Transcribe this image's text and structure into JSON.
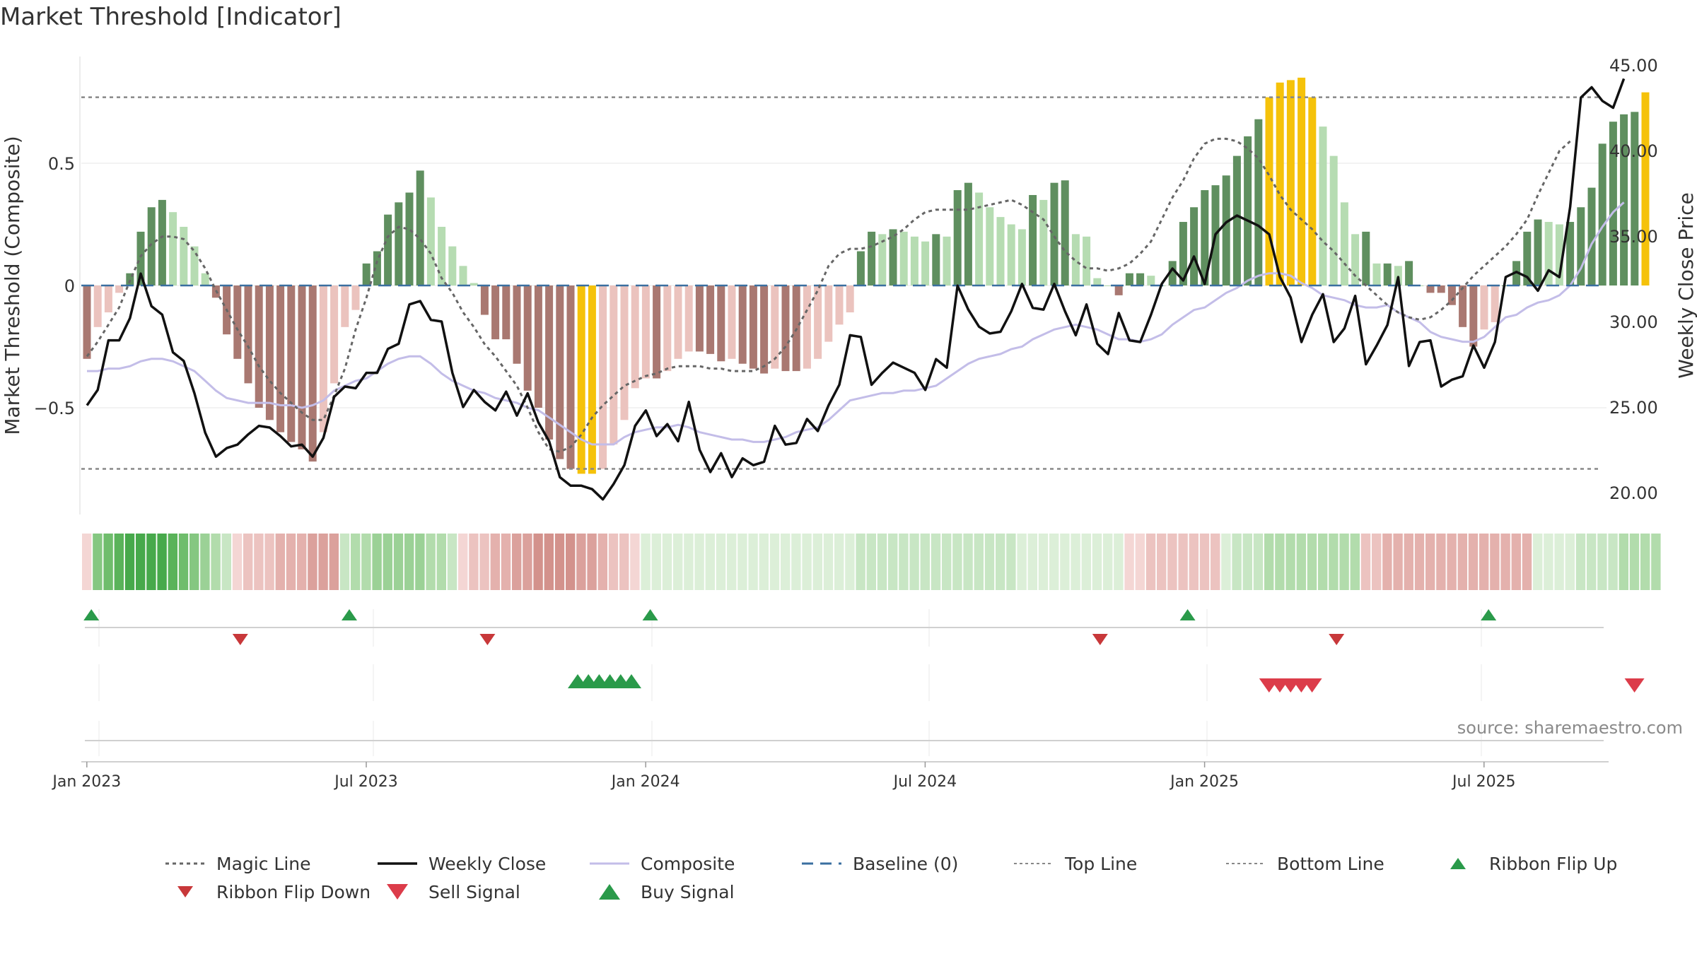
{
  "chart_data": {
    "title": "Market Threshold [Indicator]",
    "type": "bar+line",
    "ylabel_left": "Market Threshold (Composite)",
    "ylabel_right": "Weekly Close Price",
    "left_ticks": [
      {
        "v": 0.5,
        "label": "0.5"
      },
      {
        "v": 0,
        "label": "0"
      },
      {
        "v": -0.5,
        "label": "−0.5"
      }
    ],
    "right_ticks": [
      {
        "v": 45,
        "label": "45.00"
      },
      {
        "v": 40,
        "label": "40.00"
      },
      {
        "v": 35,
        "label": "35.00"
      },
      {
        "v": 30,
        "label": "30.00"
      },
      {
        "v": 25,
        "label": "25.00"
      },
      {
        "v": 20,
        "label": "20.00"
      }
    ],
    "x_ticks": [
      {
        "w": 1.5,
        "label": "Jan 2023"
      },
      {
        "w": 27.5,
        "label": "Jul 2023"
      },
      {
        "w": 53.5,
        "label": "Jan 2024"
      },
      {
        "w": 79.5,
        "label": "Jul 2024"
      },
      {
        "w": 105.5,
        "label": "Jan 2025"
      },
      {
        "w": 131.5,
        "label": "Jul 2025"
      }
    ],
    "ylim_left": [
      -0.92,
      0.92
    ],
    "ylim_right": [
      19.0,
      46.0
    ],
    "top_line": 0.77,
    "bottom_line": -0.75,
    "colors": {
      "pos_strong": "#5f8f5f",
      "pos_light": "#b6dcb2",
      "neg_strong": "#a97871",
      "neg_light": "#ebc3be",
      "extreme": "#f5c20a",
      "close": "#111111",
      "composite": "#c3bde8",
      "magic": "#666666",
      "baseline": "#3a6fa0",
      "threshold_line": "#888888",
      "flip_up": "#2a9a4a",
      "flip_down": "#c8383a",
      "buy": "#2a9a4a",
      "sell": "#dc3c4a"
    },
    "composite_hist": [
      -0.3,
      -0.17,
      -0.11,
      -0.03,
      0.05,
      0.22,
      0.32,
      0.35,
      0.3,
      0.24,
      0.16,
      0.05,
      -0.05,
      -0.2,
      -0.3,
      -0.4,
      -0.5,
      -0.55,
      -0.6,
      -0.64,
      -0.67,
      -0.72,
      -0.6,
      -0.4,
      -0.17,
      -0.1,
      0.09,
      0.14,
      0.29,
      0.34,
      0.38,
      0.47,
      0.36,
      0.24,
      0.16,
      0.08,
      0.01,
      -0.12,
      -0.22,
      -0.22,
      -0.32,
      -0.43,
      -0.5,
      -0.63,
      -0.71,
      -0.75,
      -0.77,
      -0.77,
      -0.75,
      -0.65,
      -0.55,
      -0.42,
      -0.38,
      -0.38,
      -0.35,
      -0.3,
      -0.27,
      -0.27,
      -0.28,
      -0.31,
      -0.3,
      -0.32,
      -0.34,
      -0.36,
      -0.34,
      -0.35,
      -0.35,
      -0.34,
      -0.3,
      -0.23,
      -0.16,
      -0.11,
      0.14,
      0.22,
      0.21,
      0.23,
      0.22,
      0.2,
      0.18,
      0.21,
      0.2,
      0.39,
      0.42,
      0.38,
      0.32,
      0.28,
      0.25,
      0.23,
      0.37,
      0.35,
      0.42,
      0.43,
      0.21,
      0.2,
      0.03,
      0.0,
      -0.04,
      0.05,
      0.05,
      0.04,
      0.0,
      0.1,
      0.26,
      0.32,
      0.39,
      0.41,
      0.45,
      0.53,
      0.61,
      0.68,
      0.77,
      0.83,
      0.84,
      0.85,
      0.77,
      0.65,
      0.53,
      0.34,
      0.21,
      0.22,
      0.09,
      0.09,
      0.08,
      0.1,
      0.0,
      -0.03,
      -0.03,
      -0.08,
      -0.17,
      -0.25,
      -0.18,
      -0.15,
      0.0,
      0.1,
      0.22,
      0.27,
      0.26,
      0.25,
      0.26,
      0.32,
      0.4,
      0.58,
      0.67,
      0.7,
      0.71,
      0.79
    ],
    "weekly_close": [
      25.1,
      26.0,
      28.9,
      28.9,
      30.2,
      32.8,
      30.9,
      30.4,
      28.2,
      27.7,
      25.8,
      23.5,
      22.1,
      22.6,
      22.8,
      23.4,
      23.9,
      23.8,
      23.3,
      22.7,
      22.8,
      22.1,
      23.2,
      25.6,
      26.2,
      26.1,
      27.0,
      27.0,
      28.4,
      28.7,
      31.0,
      31.2,
      30.1,
      30.0,
      27.0,
      25.0,
      26.0,
      25.3,
      24.8,
      25.9,
      24.5,
      25.8,
      24.1,
      23.0,
      20.9,
      20.4,
      20.4,
      20.2,
      19.6,
      20.5,
      21.6,
      23.9,
      24.8,
      23.3,
      24.0,
      23.0,
      25.3,
      22.5,
      21.2,
      22.3,
      20.9,
      22.0,
      21.6,
      21.8,
      23.9,
      22.8,
      22.9,
      24.3,
      23.6,
      25.1,
      26.3,
      29.2,
      29.1,
      26.3,
      27.0,
      27.6,
      27.3,
      27.0,
      26.0,
      27.8,
      27.3,
      32.1,
      30.7,
      29.7,
      29.3,
      29.4,
      30.6,
      32.2,
      30.8,
      30.7,
      32.2,
      30.6,
      29.2,
      31.0,
      28.7,
      28.1,
      30.5,
      28.9,
      28.8,
      30.4,
      32.2,
      33.1,
      32.4,
      33.8,
      32.2,
      35.1,
      35.8,
      36.2,
      35.9,
      35.6,
      35.1,
      32.6,
      31.4,
      28.8,
      30.4,
      31.6,
      28.8,
      29.6,
      31.5,
      27.5,
      28.6,
      29.8,
      32.6,
      27.4,
      28.8,
      28.9,
      26.2,
      26.6,
      26.8,
      28.6,
      27.3,
      28.8,
      32.6,
      32.9,
      32.6,
      31.8,
      33.0,
      32.6,
      36.7,
      43.1,
      43.7,
      42.9,
      42.5,
      44.2
    ],
    "composite_line": [
      -0.35,
      -0.35,
      -0.34,
      -0.34,
      -0.33,
      -0.31,
      -0.3,
      -0.3,
      -0.31,
      -0.33,
      -0.35,
      -0.39,
      -0.43,
      -0.46,
      -0.47,
      -0.48,
      -0.48,
      -0.48,
      -0.49,
      -0.49,
      -0.5,
      -0.49,
      -0.47,
      -0.43,
      -0.41,
      -0.39,
      -0.38,
      -0.35,
      -0.32,
      -0.3,
      -0.29,
      -0.29,
      -0.32,
      -0.36,
      -0.39,
      -0.41,
      -0.43,
      -0.44,
      -0.46,
      -0.47,
      -0.48,
      -0.5,
      -0.51,
      -0.54,
      -0.57,
      -0.6,
      -0.63,
      -0.65,
      -0.65,
      -0.65,
      -0.62,
      -0.6,
      -0.59,
      -0.58,
      -0.58,
      -0.57,
      -0.58,
      -0.6,
      -0.61,
      -0.62,
      -0.63,
      -0.63,
      -0.64,
      -0.64,
      -0.63,
      -0.62,
      -0.6,
      -0.59,
      -0.58,
      -0.55,
      -0.51,
      -0.47,
      -0.46,
      -0.45,
      -0.44,
      -0.44,
      -0.43,
      -0.43,
      -0.42,
      -0.41,
      -0.38,
      -0.35,
      -0.32,
      -0.3,
      -0.29,
      -0.28,
      -0.26,
      -0.25,
      -0.22,
      -0.2,
      -0.18,
      -0.17,
      -0.16,
      -0.17,
      -0.18,
      -0.2,
      -0.22,
      -0.22,
      -0.23,
      -0.22,
      -0.2,
      -0.16,
      -0.13,
      -0.1,
      -0.09,
      -0.06,
      -0.03,
      -0.01,
      0.02,
      0.04,
      0.05,
      0.05,
      0.04,
      0.01,
      -0.01,
      -0.04,
      -0.05,
      -0.06,
      -0.08,
      -0.09,
      -0.09,
      -0.08,
      -0.11,
      -0.13,
      -0.15,
      -0.19,
      -0.21,
      -0.22,
      -0.23,
      -0.23,
      -0.21,
      -0.17,
      -0.13,
      -0.12,
      -0.09,
      -0.07,
      -0.06,
      -0.04,
      0.0,
      0.07,
      0.17,
      0.24,
      0.3,
      0.34
    ],
    "magic_line": [
      -0.29,
      -0.23,
      -0.16,
      -0.09,
      0.02,
      0.12,
      0.17,
      0.2,
      0.2,
      0.19,
      0.14,
      0.07,
      -0.02,
      -0.1,
      -0.18,
      -0.25,
      -0.33,
      -0.39,
      -0.44,
      -0.48,
      -0.52,
      -0.55,
      -0.55,
      -0.45,
      -0.34,
      -0.18,
      -0.05,
      0.1,
      0.2,
      0.24,
      0.23,
      0.19,
      0.13,
      0.03,
      -0.03,
      -0.11,
      -0.17,
      -0.24,
      -0.29,
      -0.35,
      -0.41,
      -0.5,
      -0.6,
      -0.67,
      -0.68,
      -0.66,
      -0.61,
      -0.54,
      -0.49,
      -0.45,
      -0.41,
      -0.39,
      -0.37,
      -0.36,
      -0.34,
      -0.33,
      -0.33,
      -0.33,
      -0.34,
      -0.34,
      -0.35,
      -0.35,
      -0.35,
      -0.33,
      -0.3,
      -0.25,
      -0.18,
      -0.1,
      -0.02,
      0.08,
      0.13,
      0.15,
      0.15,
      0.16,
      0.18,
      0.2,
      0.23,
      0.27,
      0.3,
      0.31,
      0.31,
      0.31,
      0.31,
      0.32,
      0.33,
      0.34,
      0.35,
      0.33,
      0.3,
      0.27,
      0.2,
      0.14,
      0.1,
      0.07,
      0.07,
      0.06,
      0.07,
      0.09,
      0.13,
      0.18,
      0.27,
      0.36,
      0.43,
      0.52,
      0.58,
      0.6,
      0.6,
      0.59,
      0.56,
      0.52,
      0.45,
      0.37,
      0.31,
      0.27,
      0.23,
      0.18,
      0.14,
      0.09,
      0.04,
      0.0,
      -0.04,
      -0.08,
      -0.11,
      -0.13,
      -0.14,
      -0.13,
      -0.1,
      -0.06,
      -0.01,
      0.04,
      0.08,
      0.12,
      0.16,
      0.21,
      0.27,
      0.37,
      0.46,
      0.55,
      0.59
    ],
    "ribbon": [
      {
        "side": "n",
        "level": 1
      },
      {
        "side": "p",
        "level": 5
      },
      {
        "side": "p",
        "level": 6
      },
      {
        "side": "p",
        "level": 7
      },
      {
        "side": "p",
        "level": 8
      },
      {
        "side": "p",
        "level": 8
      },
      {
        "side": "p",
        "level": 8
      },
      {
        "side": "p",
        "level": 8
      },
      {
        "side": "p",
        "level": 7
      },
      {
        "side": "p",
        "level": 6
      },
      {
        "side": "p",
        "level": 5
      },
      {
        "side": "p",
        "level": 4
      },
      {
        "side": "p",
        "level": 3
      },
      {
        "side": "p",
        "level": 2
      },
      {
        "side": "n",
        "level": 1
      },
      {
        "side": "n",
        "level": 2
      },
      {
        "side": "n",
        "level": 2
      },
      {
        "side": "n",
        "level": 2
      },
      {
        "side": "n",
        "level": 3
      },
      {
        "side": "n",
        "level": 3
      },
      {
        "side": "n",
        "level": 3
      },
      {
        "side": "n",
        "level": 4
      },
      {
        "side": "n",
        "level": 4
      },
      {
        "side": "n",
        "level": 4
      },
      {
        "side": "p",
        "level": 2
      },
      {
        "side": "p",
        "level": 3
      },
      {
        "side": "p",
        "level": 3
      },
      {
        "side": "p",
        "level": 4
      },
      {
        "side": "p",
        "level": 4
      },
      {
        "side": "p",
        "level": 4
      },
      {
        "side": "p",
        "level": 4
      },
      {
        "side": "p",
        "level": 4
      },
      {
        "side": "p",
        "level": 3
      },
      {
        "side": "p",
        "level": 3
      },
      {
        "side": "p",
        "level": 2
      },
      {
        "side": "n",
        "level": 1
      },
      {
        "side": "n",
        "level": 2
      },
      {
        "side": "n",
        "level": 2
      },
      {
        "side": "n",
        "level": 3
      },
      {
        "side": "n",
        "level": 3
      },
      {
        "side": "n",
        "level": 4
      },
      {
        "side": "n",
        "level": 4
      },
      {
        "side": "n",
        "level": 5
      },
      {
        "side": "n",
        "level": 5
      },
      {
        "side": "n",
        "level": 5
      },
      {
        "side": "n",
        "level": 5
      },
      {
        "side": "n",
        "level": 4
      },
      {
        "side": "n",
        "level": 4
      },
      {
        "side": "n",
        "level": 3
      },
      {
        "side": "n",
        "level": 2
      },
      {
        "side": "n",
        "level": 2
      },
      {
        "side": "n",
        "level": 1
      },
      {
        "side": "p",
        "level": 1
      },
      {
        "side": "p",
        "level": 1
      },
      {
        "side": "p",
        "level": 1
      },
      {
        "side": "p",
        "level": 1
      },
      {
        "side": "p",
        "level": 1
      },
      {
        "side": "p",
        "level": 1
      },
      {
        "side": "p",
        "level": 1
      },
      {
        "side": "p",
        "level": 1
      },
      {
        "side": "p",
        "level": 1
      },
      {
        "side": "p",
        "level": 1
      },
      {
        "side": "p",
        "level": 1
      },
      {
        "side": "p",
        "level": 1
      },
      {
        "side": "p",
        "level": 1
      },
      {
        "side": "p",
        "level": 1
      },
      {
        "side": "p",
        "level": 1
      },
      {
        "side": "p",
        "level": 1
      },
      {
        "side": "p",
        "level": 1
      },
      {
        "side": "p",
        "level": 1
      },
      {
        "side": "p",
        "level": 1
      },
      {
        "side": "p",
        "level": 1
      },
      {
        "side": "p",
        "level": 2
      },
      {
        "side": "p",
        "level": 2
      },
      {
        "side": "p",
        "level": 2
      },
      {
        "side": "p",
        "level": 2
      },
      {
        "side": "p",
        "level": 2
      },
      {
        "side": "p",
        "level": 2
      },
      {
        "side": "p",
        "level": 2
      },
      {
        "side": "p",
        "level": 2
      },
      {
        "side": "p",
        "level": 2
      },
      {
        "side": "p",
        "level": 2
      },
      {
        "side": "p",
        "level": 2
      },
      {
        "side": "p",
        "level": 2
      },
      {
        "side": "p",
        "level": 2
      },
      {
        "side": "p",
        "level": 2
      },
      {
        "side": "p",
        "level": 2
      },
      {
        "side": "p",
        "level": 1
      },
      {
        "side": "p",
        "level": 1
      },
      {
        "side": "p",
        "level": 1
      },
      {
        "side": "p",
        "level": 1
      },
      {
        "side": "p",
        "level": 1
      },
      {
        "side": "p",
        "level": 1
      },
      {
        "side": "p",
        "level": 1
      },
      {
        "side": "p",
        "level": 1
      },
      {
        "side": "p",
        "level": 1
      },
      {
        "side": "p",
        "level": 1
      },
      {
        "side": "n",
        "level": 1
      },
      {
        "side": "n",
        "level": 1
      },
      {
        "side": "n",
        "level": 2
      },
      {
        "side": "n",
        "level": 2
      },
      {
        "side": "n",
        "level": 2
      },
      {
        "side": "n",
        "level": 2
      },
      {
        "side": "n",
        "level": 2
      },
      {
        "side": "n",
        "level": 2
      },
      {
        "side": "n",
        "level": 2
      },
      {
        "side": "p",
        "level": 1
      },
      {
        "side": "p",
        "level": 2
      },
      {
        "side": "p",
        "level": 2
      },
      {
        "side": "p",
        "level": 2
      },
      {
        "side": "p",
        "level": 3
      },
      {
        "side": "p",
        "level": 3
      },
      {
        "side": "p",
        "level": 3
      },
      {
        "side": "p",
        "level": 3
      },
      {
        "side": "p",
        "level": 3
      },
      {
        "side": "p",
        "level": 3
      },
      {
        "side": "p",
        "level": 3
      },
      {
        "side": "p",
        "level": 3
      },
      {
        "side": "p",
        "level": 3
      },
      {
        "side": "n",
        "level": 2
      },
      {
        "side": "n",
        "level": 2
      },
      {
        "side": "n",
        "level": 3
      },
      {
        "side": "n",
        "level": 3
      },
      {
        "side": "n",
        "level": 3
      },
      {
        "side": "n",
        "level": 3
      },
      {
        "side": "n",
        "level": 3
      },
      {
        "side": "n",
        "level": 3
      },
      {
        "side": "n",
        "level": 3
      },
      {
        "side": "n",
        "level": 3
      },
      {
        "side": "n",
        "level": 3
      },
      {
        "side": "n",
        "level": 3
      },
      {
        "side": "n",
        "level": 3
      },
      {
        "side": "n",
        "level": 3
      },
      {
        "side": "n",
        "level": 3
      },
      {
        "side": "n",
        "level": 3
      },
      {
        "side": "p",
        "level": 1
      },
      {
        "side": "p",
        "level": 1
      },
      {
        "side": "p",
        "level": 1
      },
      {
        "side": "p",
        "level": 1
      },
      {
        "side": "p",
        "level": 2
      },
      {
        "side": "p",
        "level": 2
      },
      {
        "side": "p",
        "level": 2
      },
      {
        "side": "p",
        "level": 2
      },
      {
        "side": "p",
        "level": 3
      },
      {
        "side": "p",
        "level": 3
      },
      {
        "side": "p",
        "level": 3
      },
      {
        "side": "p",
        "level": 3
      }
    ],
    "signals": {
      "ribbon_flip_up": [
        1,
        25,
        53,
        103,
        131
      ],
      "ribbon_flip_down": [
        14,
        37,
        94,
        116
      ],
      "buy": [
        45,
        46,
        47,
        48,
        49,
        50
      ],
      "sell": [
        109,
        110,
        111,
        112,
        113,
        143
      ]
    },
    "legend": [
      {
        "key": "magic",
        "label": "Magic Line",
        "shape": "dotted"
      },
      {
        "key": "close",
        "label": "Weekly Close",
        "shape": "solid"
      },
      {
        "key": "composite",
        "label": "Composite",
        "shape": "solid-light"
      },
      {
        "key": "baseline",
        "label": "Baseline (0)",
        "shape": "dashed"
      },
      {
        "key": "top",
        "label": "Top Line",
        "shape": "dotted-light"
      },
      {
        "key": "bottom",
        "label": "Bottom Line",
        "shape": "dotted-light"
      },
      {
        "key": "flip_up",
        "label": "Ribbon Flip Up",
        "shape": "triangle-up"
      },
      {
        "key": "flip_down",
        "label": "Ribbon Flip Down",
        "shape": "triangle-down"
      },
      {
        "key": "sell",
        "label": "Sell Signal",
        "shape": "triangle-down-big"
      },
      {
        "key": "buy",
        "label": "Buy Signal",
        "shape": "triangle-up-big"
      }
    ],
    "source": "source: sharemaestro.com"
  }
}
